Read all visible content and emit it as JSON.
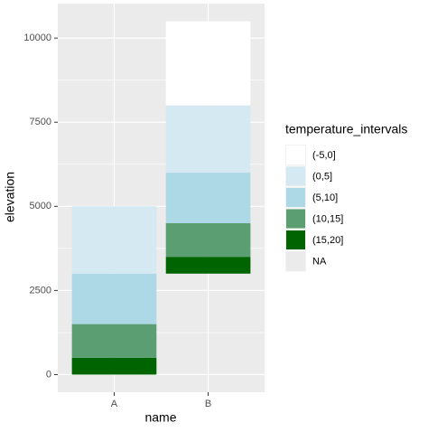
{
  "chart_data": {
    "type": "stacked-bar",
    "x_label": "name",
    "y_label": "elevation",
    "legend_title": "temperature_intervals",
    "categories": [
      "A",
      "B"
    ],
    "series": [
      {
        "name": "(-5,0]",
        "color": "#ffffff",
        "values": [
          null,
          2500
        ]
      },
      {
        "name": "(0,5]",
        "color": "#d4e9f1",
        "values": [
          2000,
          2000
        ]
      },
      {
        "name": "(5,10]",
        "color": "#add8e6",
        "values": [
          1500,
          1500
        ]
      },
      {
        "name": "(10,15]",
        "color": "#5a9e72",
        "values": [
          1000,
          1000
        ]
      },
      {
        "name": "(15,20]",
        "color": "#006400",
        "values": [
          500,
          500
        ]
      },
      {
        "name": "NA",
        "color": "#ebebeb",
        "values": [
          0,
          3000
        ]
      }
    ],
    "ylim": [
      -525,
      11025
    ],
    "yticks": [
      0,
      2500,
      5000,
      7500,
      10000
    ],
    "grid": true
  }
}
